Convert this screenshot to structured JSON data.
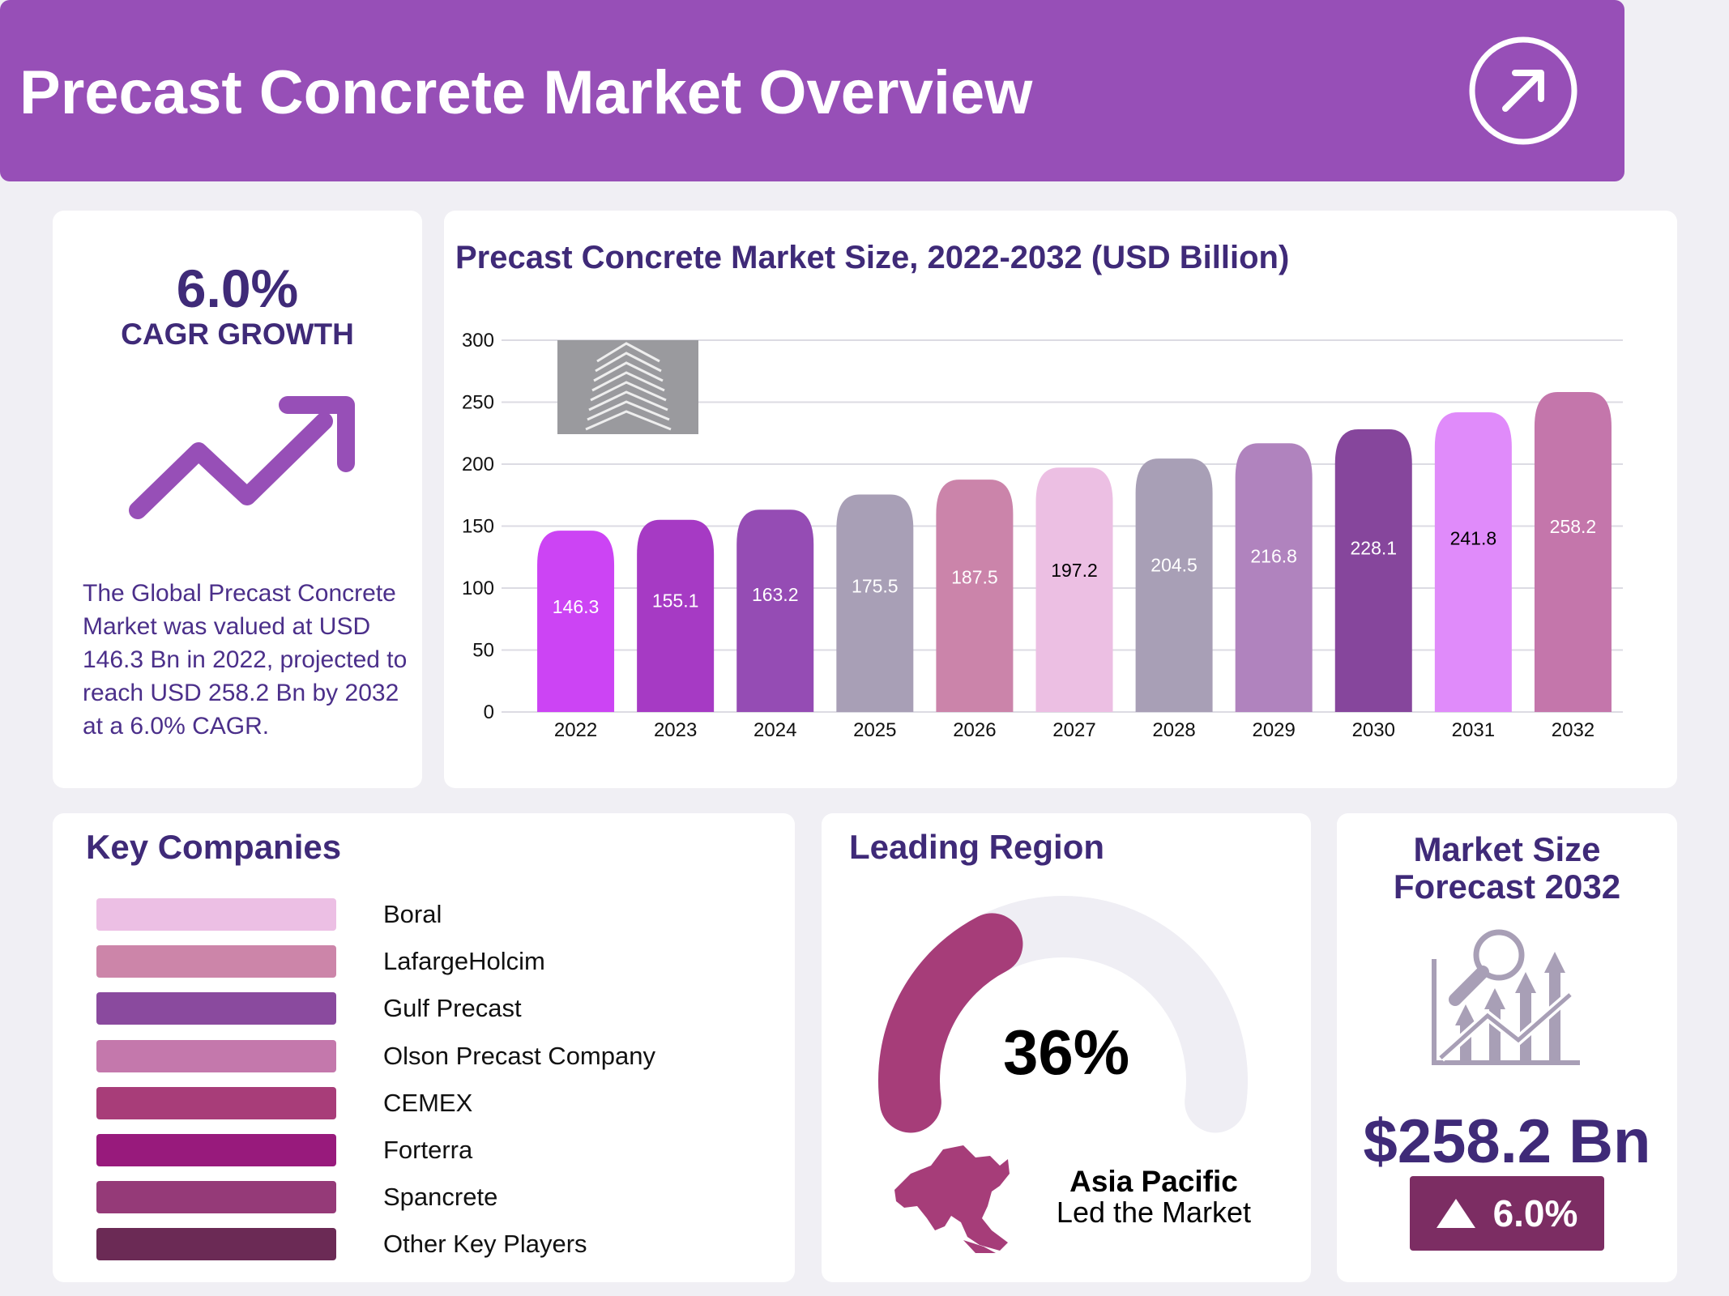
{
  "header": {
    "title": "Precast Concrete Market Overview",
    "icon": "arrow-up-right-circle-icon"
  },
  "cagr": {
    "value": "6.0%",
    "label": "CAGR GROWTH",
    "icon": "trend-up-arrow-icon",
    "description": "The Global Precast Concrete Market was valued at USD 146.3 Bn in 2022, projected to reach USD 258.2 Bn by 2032 at a 6.0% CAGR."
  },
  "chart_data": {
    "type": "bar",
    "title": "Precast Concrete Market Size, 2022-2032 (USD Billion)",
    "categories": [
      "2022",
      "2023",
      "2024",
      "2025",
      "2026",
      "2027",
      "2028",
      "2029",
      "2030",
      "2031",
      "2032"
    ],
    "values": [
      146.3,
      155.1,
      163.2,
      175.5,
      187.5,
      197.2,
      204.5,
      216.8,
      228.1,
      241.8,
      258.2
    ],
    "colors": [
      "#cc44f4",
      "#a63ac4",
      "#954cb4",
      "#a89fb6",
      "#cb84aa",
      "#ecbfe3",
      "#a89fb6",
      "#b083be",
      "#86469c",
      "#e08bfa",
      "#c476ab"
    ],
    "label_colors": [
      "#fff",
      "#fff",
      "#fff",
      "#fff",
      "#fff",
      "#000",
      "#fff",
      "#fff",
      "#fff",
      "#000",
      "#fff"
    ],
    "yticks": [
      0,
      50,
      100,
      150,
      200,
      250,
      300
    ],
    "ylim": [
      0,
      300
    ],
    "grid": true,
    "xlabel": "",
    "ylabel": ""
  },
  "companies": {
    "title": "Key Companies",
    "items": [
      {
        "name": "Boral",
        "color": "#ecbfe4"
      },
      {
        "name": "LafargeHolcim",
        "color": "#cc85a9"
      },
      {
        "name": "Gulf Precast",
        "color": "#8a4a9e"
      },
      {
        "name": "Olson Precast Company",
        "color": "#c478ac"
      },
      {
        "name": "CEMEX",
        "color": "#a83d79"
      },
      {
        "name": "Forterra",
        "color": "#981a7c"
      },
      {
        "name": "Spancrete",
        "color": "#953a78"
      },
      {
        "name": "Other Key Players",
        "color": "#6b2a55"
      }
    ]
  },
  "region": {
    "title": "Leading Region",
    "share": "36%",
    "share_value": 36,
    "name": "Asia Pacific",
    "subtitle": "Led the Market",
    "color": "#a63d79",
    "track_color": "#efeef4"
  },
  "forecast": {
    "title_line1": "Market Size",
    "title_line2": "Forecast 2032",
    "value": "$258.2 Bn",
    "growth": "6.0%",
    "icon": "chart-magnifier-icon"
  }
}
